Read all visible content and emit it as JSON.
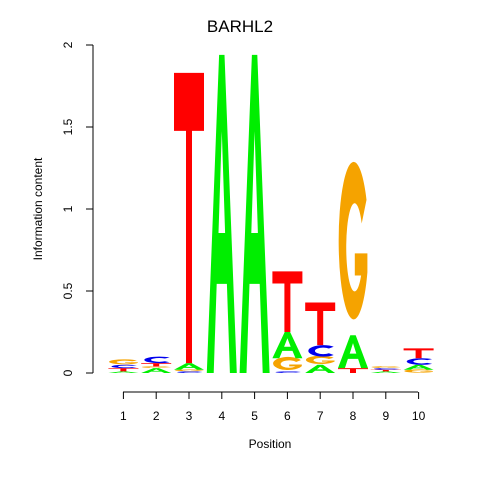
{
  "chart_data": {
    "type": "sequence-logo",
    "title": "BARHL2",
    "xlabel": "Position",
    "ylabel": "Information content",
    "ylim": [
      0,
      2
    ],
    "yticks": [
      "0",
      "0.5",
      "1",
      "1.5",
      "2"
    ],
    "positions": [
      "1",
      "2",
      "3",
      "4",
      "5",
      "6",
      "7",
      "8",
      "9",
      "10"
    ],
    "colors": {
      "A": "#00ee00",
      "C": "#0000ee",
      "G": "#f5a300",
      "T": "#ff0000"
    },
    "columns": [
      [
        {
          "base": "A",
          "height": 0.01
        },
        {
          "base": "T",
          "height": 0.02
        },
        {
          "base": "C",
          "height": 0.02
        },
        {
          "base": "G",
          "height": 0.03
        }
      ],
      [
        {
          "base": "A",
          "height": 0.03
        },
        {
          "base": "G",
          "height": 0.01
        },
        {
          "base": "T",
          "height": 0.02
        },
        {
          "base": "C",
          "height": 0.04
        }
      ],
      [
        {
          "base": "C",
          "height": 0.01
        },
        {
          "base": "G",
          "height": 0.01
        },
        {
          "base": "A",
          "height": 0.04
        },
        {
          "base": "T",
          "height": 1.77
        }
      ],
      [
        {
          "base": "A",
          "height": 1.94
        }
      ],
      [
        {
          "base": "A",
          "height": 1.94
        }
      ],
      [
        {
          "base": "C",
          "height": 0.01
        },
        {
          "base": "G",
          "height": 0.08
        },
        {
          "base": "A",
          "height": 0.16
        },
        {
          "base": "T",
          "height": 0.37
        }
      ],
      [
        {
          "base": "A",
          "height": 0.05
        },
        {
          "base": "G",
          "height": 0.05
        },
        {
          "base": "C",
          "height": 0.07
        },
        {
          "base": "T",
          "height": 0.26
        }
      ],
      [
        {
          "base": "T",
          "height": 0.03
        },
        {
          "base": "A",
          "height": 0.2
        },
        {
          "base": "G",
          "height": 0.96
        }
      ],
      [
        {
          "base": "A",
          "height": 0.01
        },
        {
          "base": "T",
          "height": 0.01
        },
        {
          "base": "C",
          "height": 0.01
        },
        {
          "base": "G",
          "height": 0.01
        }
      ],
      [
        {
          "base": "G",
          "height": 0.02
        },
        {
          "base": "A",
          "height": 0.03
        },
        {
          "base": "C",
          "height": 0.04
        },
        {
          "base": "T",
          "height": 0.06
        }
      ]
    ]
  }
}
